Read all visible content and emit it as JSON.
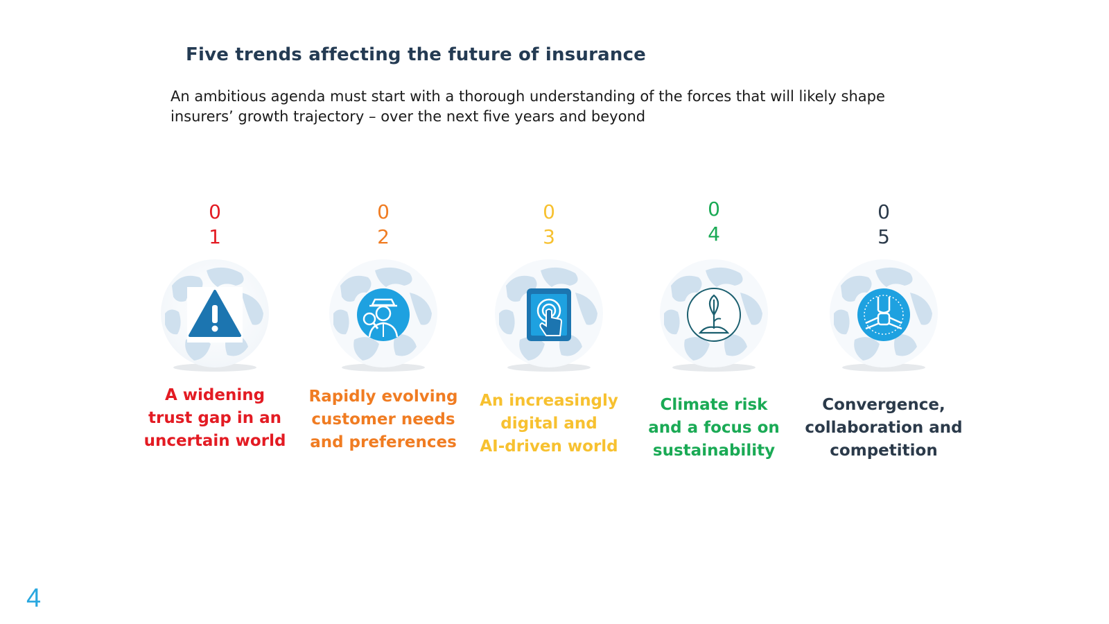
{
  "title": "Five trends affecting the future of insurance",
  "subtitle_lines": [
    "An ambitious agenda must start with a thorough understanding of the forces that will likely shape",
    "insurers’ growth trajectory – over the next five years and beyond"
  ],
  "trends": [
    {
      "num_top": "0",
      "num_bottom": "1",
      "color": "#e31b23",
      "icon": "warning-icon",
      "label_lines": [
        "A widening",
        "trust gap in an",
        "uncertain world"
      ]
    },
    {
      "num_top": "0",
      "num_bottom": "2",
      "color": "#f07c22",
      "icon": "detective-icon",
      "label_lines": [
        "Rapidly evolving",
        "customer needs",
        "and preferences"
      ]
    },
    {
      "num_top": "0",
      "num_bottom": "3",
      "color": "#f7c130",
      "icon": "tablet-touch-icon",
      "label_lines": [
        "An increasingly",
        "digital and",
        "AI-driven world"
      ]
    },
    {
      "num_top": "0",
      "num_bottom": "4",
      "color": "#1aaa55",
      "icon": "sprout-icon",
      "label_lines": [
        "Climate risk",
        "and a focus on",
        "sustainability"
      ]
    },
    {
      "num_top": "0",
      "num_bottom": "5",
      "color": "#2b3a4a",
      "icon": "joined-hands-icon",
      "label_lines": [
        "Convergence,",
        "collaboration and",
        "competition"
      ]
    }
  ],
  "page_number": "4"
}
